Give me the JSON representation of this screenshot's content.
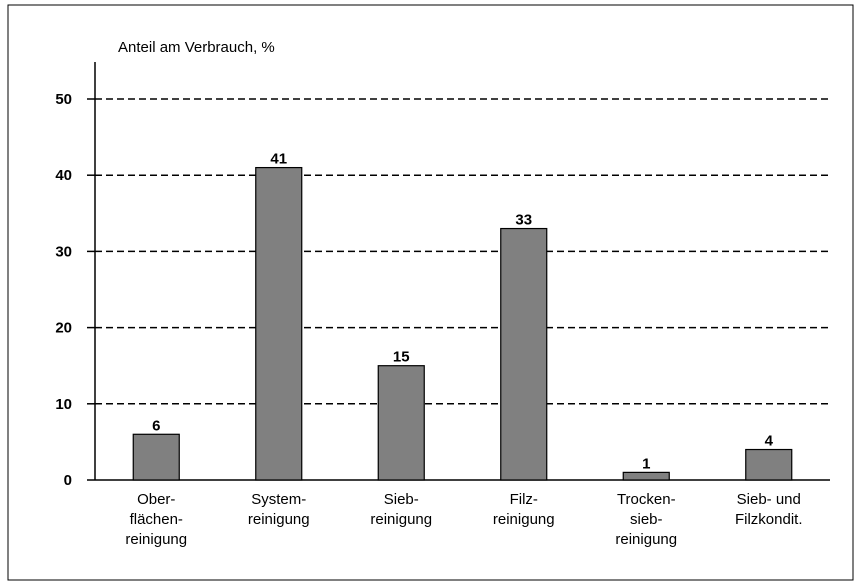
{
  "chart_data": {
    "type": "bar",
    "y_label": "Anteil am Verbrauch, %",
    "categories": [
      [
        "Ober-",
        "flächen-",
        "reinigung"
      ],
      [
        "System-",
        "reinigung"
      ],
      [
        "Sieb-",
        "reinigung"
      ],
      [
        "Filz-",
        "reinigung"
      ],
      [
        "Trocken-",
        "sieb-",
        "reinigung"
      ],
      [
        "Sieb- und",
        "Filzkondit."
      ]
    ],
    "values": [
      6,
      41,
      15,
      33,
      1,
      4
    ],
    "color": "#808080",
    "ylim": [
      0,
      50
    ],
    "yticks": [
      0,
      10,
      20,
      30,
      40,
      50
    ],
    "grid": true
  }
}
